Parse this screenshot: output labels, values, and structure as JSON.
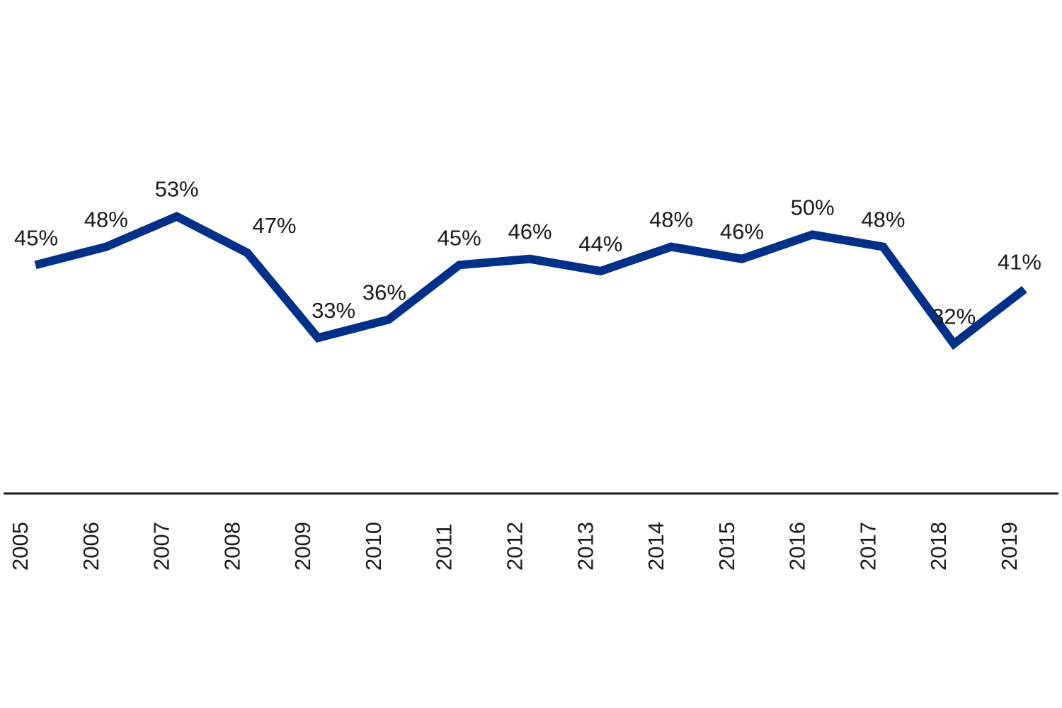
{
  "chart_data": {
    "type": "line",
    "title": "",
    "xlabel": "",
    "ylabel": "",
    "x": [
      "2005",
      "2006",
      "2007",
      "2008",
      "2009",
      "2010",
      "2011",
      "2012",
      "2013",
      "2014",
      "2015",
      "2016",
      "2017",
      "2018",
      "2019"
    ],
    "series": [
      {
        "name": "",
        "values": [
          45,
          48,
          53,
          47,
          33,
          36,
          45,
          46,
          44,
          48,
          46,
          50,
          48,
          32,
          41
        ],
        "labels": [
          "45%",
          "48%",
          "53%",
          "47%",
          "33%",
          "36%",
          "45%",
          "46%",
          "44%",
          "48%",
          "46%",
          "50%",
          "48%",
          "32%",
          "41%"
        ],
        "color": "#003087"
      }
    ],
    "ylim": [
      0,
      75
    ],
    "grid": false,
    "legend": "none",
    "axis_color": "#1a1a1a"
  }
}
